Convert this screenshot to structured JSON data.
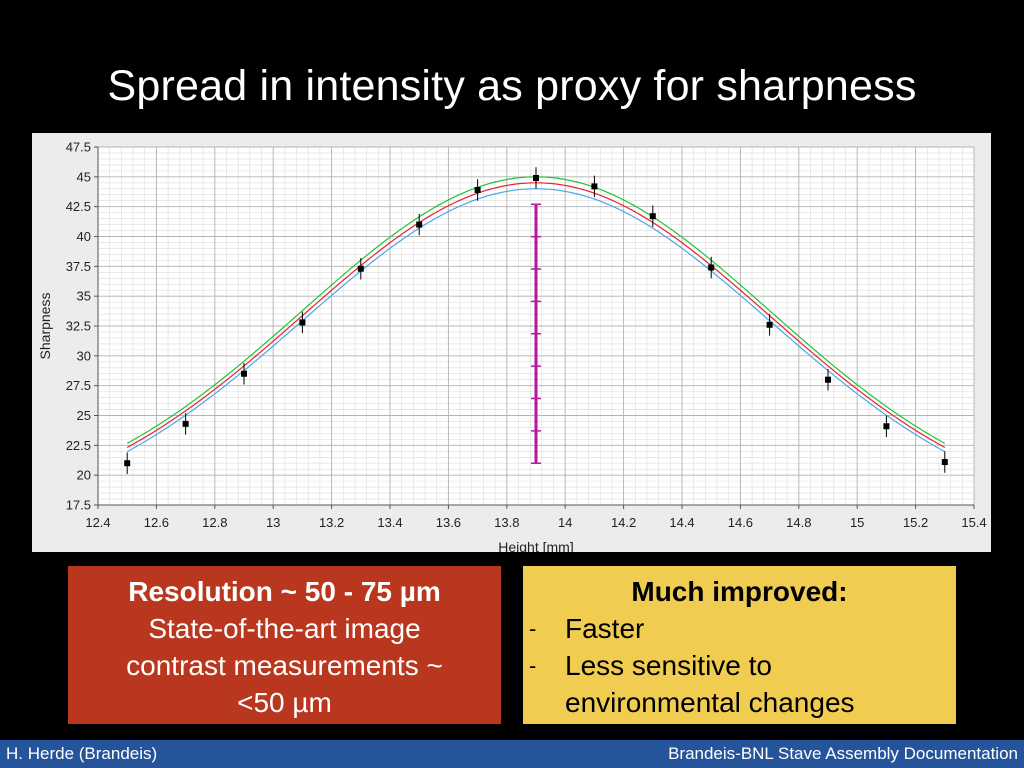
{
  "slide": {
    "title": "Spread in intensity as proxy for sharpness"
  },
  "chart_data": {
    "type": "scatter",
    "xlabel": "Height [mm]",
    "ylabel": "Sharpness",
    "xlim": [
      12.4,
      15.4
    ],
    "ylim": [
      17.5,
      47.5
    ],
    "x_ticks": [
      "12.4",
      "12.6",
      "12.8",
      "13",
      "13.2",
      "13.4",
      "13.6",
      "13.8",
      "14",
      "14.2",
      "14.4",
      "14.6",
      "14.8",
      "15",
      "15.2",
      "15.4"
    ],
    "y_ticks": [
      "17.5",
      "20",
      "22.5",
      "25",
      "27.5",
      "30",
      "32.5",
      "35",
      "37.5",
      "40",
      "42.5",
      "45",
      "47.5"
    ],
    "grid": true,
    "points": {
      "x": [
        12.5,
        12.7,
        12.9,
        13.1,
        13.3,
        13.5,
        13.7,
        13.9,
        14.1,
        14.3,
        14.5,
        14.7,
        14.9,
        15.1,
        15.3
      ],
      "y": [
        21.0,
        24.3,
        28.5,
        32.8,
        37.3,
        41.0,
        43.9,
        44.9,
        44.2,
        41.7,
        37.4,
        32.6,
        28.0,
        24.1,
        21.1
      ],
      "err": [
        0.9,
        0.9,
        0.9,
        0.9,
        0.9,
        0.9,
        0.9,
        0.9,
        0.9,
        0.9,
        0.9,
        0.9,
        0.9,
        0.9,
        0.9
      ],
      "color": "#000000"
    },
    "fit_curves": [
      {
        "color": "#22c23a",
        "peak": 45.0,
        "center": 13.9,
        "sigma": 0.8,
        "base": 16.5
      },
      {
        "color": "#e5232f",
        "peak": 44.5,
        "center": 13.9,
        "sigma": 0.8,
        "base": 16.2
      },
      {
        "color": "#4aa8e8",
        "peak": 44.0,
        "center": 13.9,
        "sigma": 0.8,
        "base": 15.9
      }
    ],
    "marker_bar": {
      "x": 13.9,
      "y_range": [
        21.0,
        42.7
      ],
      "ticks": 9,
      "color": "#b5179e"
    }
  },
  "boxes": {
    "resolution": {
      "heading": "Resolution ~ 50 - 75 µm",
      "line1": "State-of-the-art image",
      "line2": "contrast measurements ~",
      "line3": "<50 µm",
      "bg": "#b9361f"
    },
    "improved": {
      "heading": "Much improved:",
      "bullet_marker": "-",
      "items": [
        "Faster",
        "Less sensitive to",
        "environmental changes"
      ],
      "bg": "#f0cd50"
    }
  },
  "footer": {
    "left": "H. Herde (Brandeis)",
    "right": "Brandeis-BNL Stave Assembly Documentation",
    "bg": "#25549b"
  }
}
